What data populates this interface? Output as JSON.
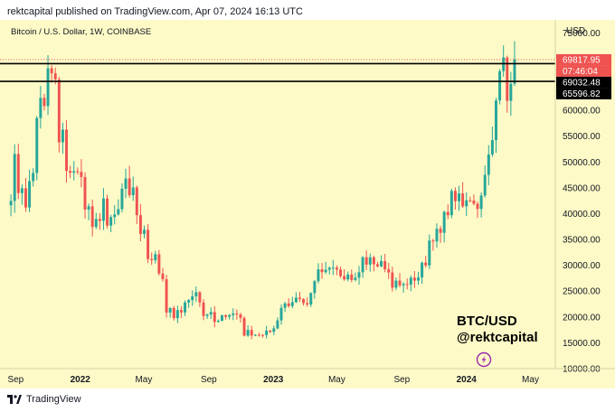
{
  "header": {
    "text": "rektcapital published on TradingView.com, Apr 07, 2024 16:13 UTC"
  },
  "footer": {
    "brand": "TradingView"
  },
  "colors": {
    "background": "#fdfac7",
    "up": "#26a69a",
    "down": "#ef5350",
    "level_line": "#000000",
    "price_line": "#ef5350"
  },
  "chart_data": {
    "type": "candlestick",
    "title": "Bitcoin / U.S. Dollar, 1W, COINBASE",
    "axis_currency": "USD",
    "y_ticks": [
      10000,
      15000,
      20000,
      25000,
      30000,
      35000,
      40000,
      45000,
      50000,
      55000,
      60000,
      65000,
      70000,
      75000
    ],
    "ylim": [
      10000,
      77500
    ],
    "x_ticks": [
      {
        "label": "Sep",
        "date": "2021-09-01"
      },
      {
        "label": "2022",
        "date": "2022-01-01"
      },
      {
        "label": "May",
        "date": "2022-05-01"
      },
      {
        "label": "Sep",
        "date": "2022-09-01"
      },
      {
        "label": "2023",
        "date": "2023-01-01"
      },
      {
        "label": "May",
        "date": "2023-05-01"
      },
      {
        "label": "Sep",
        "date": "2023-09-01"
      },
      {
        "label": "2024",
        "date": "2024-01-01"
      },
      {
        "label": "May",
        "date": "2024-05-01"
      }
    ],
    "x_range": [
      "2021-08-16",
      "2024-06-17"
    ],
    "horizontal_levels": [
      69032.48,
      65596.82
    ],
    "price_labels": [
      {
        "text": "69817.95",
        "value": 69817.95,
        "style": "current"
      },
      {
        "text": "07:46:04",
        "value": 69817.95,
        "style": "countdown"
      },
      {
        "text": "69032.48",
        "value": 69032.48,
        "style": "level"
      },
      {
        "text": "65596.82",
        "value": 65596.82,
        "style": "level"
      }
    ],
    "annotations": [
      "BTC/USD",
      "@rektcapital"
    ],
    "anchors": [
      [
        "2021-08-23",
        47000,
        50000,
        44000
      ],
      [
        "2021-09-06",
        52000,
        44500,
        43000
      ],
      [
        "2021-09-20",
        42000,
        43000,
        40000
      ],
      [
        "2021-10-04",
        48500,
        54000,
        47500
      ],
      [
        "2021-10-18",
        62000,
        66500,
        61000
      ],
      [
        "2021-11-08",
        65000,
        69000,
        66000
      ],
      [
        "2021-11-22",
        58000,
        59500,
        54000
      ],
      [
        "2021-12-06",
        49500,
        51000,
        47000
      ],
      [
        "2021-12-27",
        47500,
        48500,
        46500
      ],
      [
        "2022-01-10",
        42000,
        43000,
        41000
      ],
      [
        "2022-01-24",
        36000,
        38500,
        37000
      ],
      [
        "2022-02-07",
        42500,
        44500,
        40000
      ],
      [
        "2022-02-21",
        38000,
        39500,
        38500
      ],
      [
        "2022-03-14",
        41000,
        42000,
        42000
      ],
      [
        "2022-03-28",
        46500,
        47500,
        45500
      ],
      [
        "2022-04-18",
        40500,
        42000,
        39500
      ],
      [
        "2022-05-09",
        31000,
        33000,
        30500
      ],
      [
        "2022-05-30",
        29500,
        31000,
        29000
      ],
      [
        "2022-06-13",
        20500,
        22500,
        21000
      ],
      [
        "2022-06-27",
        19500,
        20500,
        19800
      ],
      [
        "2022-07-18",
        22500,
        23500,
        22800
      ],
      [
        "2022-08-08",
        24000,
        24800,
        24000
      ],
      [
        "2022-08-22",
        21000,
        21500,
        20800
      ],
      [
        "2022-09-12",
        19500,
        20500,
        19500
      ],
      [
        "2022-10-03",
        19500,
        20000,
        19600
      ],
      [
        "2022-10-31",
        21000,
        21200,
        20800
      ],
      [
        "2022-11-07",
        17000,
        17500,
        16800
      ],
      [
        "2022-11-21",
        16500,
        17000,
        16500
      ],
      [
        "2022-12-12",
        16800,
        17200,
        16700
      ],
      [
        "2023-01-02",
        17000,
        18000,
        17200
      ],
      [
        "2023-01-16",
        21000,
        22500,
        21200
      ],
      [
        "2023-02-13",
        24500,
        24800,
        23500
      ],
      [
        "2023-03-06",
        21500,
        22000,
        22000
      ],
      [
        "2023-03-20",
        28000,
        28500,
        27500
      ],
      [
        "2023-04-10",
        30000,
        30500,
        29800
      ],
      [
        "2023-05-01",
        28500,
        29000,
        28200
      ],
      [
        "2023-05-22",
        27000,
        27800,
        27300
      ],
      [
        "2023-06-12",
        26500,
        26800,
        26200
      ],
      [
        "2023-06-19",
        30500,
        30800,
        30500
      ],
      [
        "2023-07-10",
        30300,
        30600,
        30200
      ],
      [
        "2023-08-07",
        29400,
        29600,
        29300
      ],
      [
        "2023-08-14",
        26000,
        26500,
        26000
      ],
      [
        "2023-09-11",
        26500,
        26800,
        26400
      ],
      [
        "2023-10-02",
        27500,
        28000,
        27800
      ],
      [
        "2023-10-23",
        34500,
        34900,
        34600
      ],
      [
        "2023-11-13",
        37500,
        37800,
        37400
      ],
      [
        "2023-12-04",
        44000,
        44500,
        43800
      ],
      [
        "2023-12-25",
        42500,
        43000,
        42800
      ],
      [
        "2024-01-08",
        42800,
        43200,
        43000
      ],
      [
        "2024-01-22",
        42000,
        42500,
        41800
      ],
      [
        "2024-02-05",
        48000,
        48500,
        48000
      ],
      [
        "2024-02-26",
        62500,
        63500,
        62000
      ],
      [
        "2024-03-11",
        68500,
        71500,
        68500
      ],
      [
        "2024-03-18",
        64000,
        66500,
        64000
      ],
      [
        "2024-04-01",
        68500,
        70500,
        69818
      ]
    ]
  }
}
